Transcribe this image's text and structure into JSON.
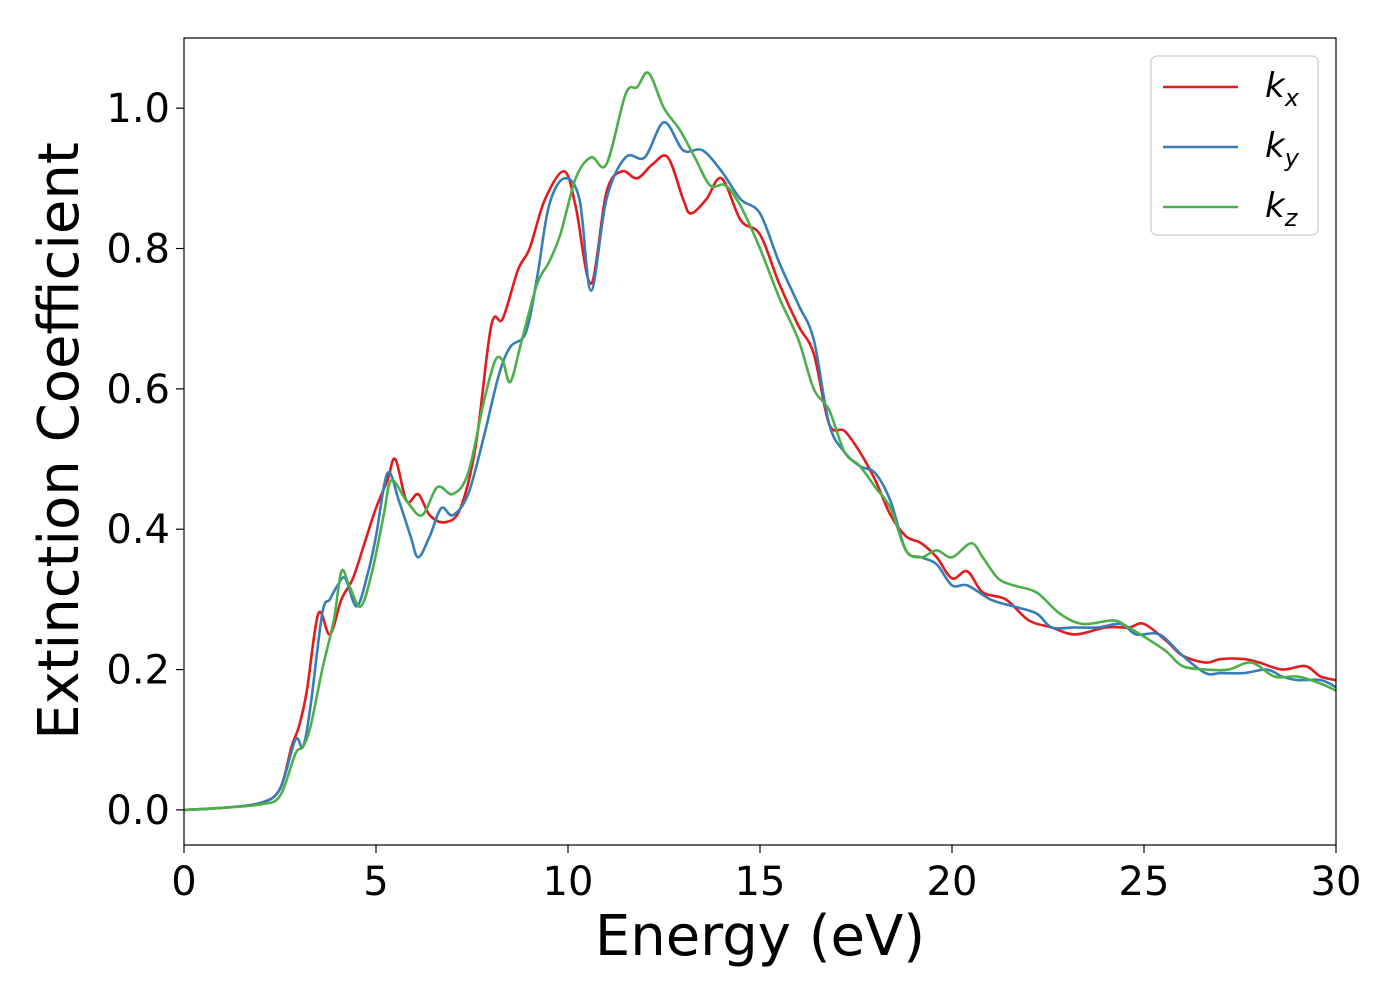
{
  "chart_data": {
    "type": "line",
    "title": "",
    "xlabel": "Energy (eV)",
    "ylabel": "Extinction Coefficient",
    "xlim": [
      0,
      30
    ],
    "ylim": [
      -0.05,
      1.1
    ],
    "xticks": [
      0,
      5,
      10,
      15,
      20,
      25,
      30
    ],
    "xtick_labels": [
      "0",
      "5",
      "10",
      "15",
      "20",
      "25",
      "30"
    ],
    "yticks": [
      0.0,
      0.2,
      0.4,
      0.6,
      0.8,
      1.0
    ],
    "ytick_labels": [
      "0.0",
      "0.2",
      "0.4",
      "0.6",
      "0.8",
      "1.0"
    ],
    "grid": false,
    "legend_position": "top-right",
    "series": [
      {
        "name": "kx",
        "legend_base": "k",
        "legend_sub": "x",
        "color": "#e41a1c",
        "points": [
          [
            0,
            0.0
          ],
          [
            1,
            0.003
          ],
          [
            2,
            0.01
          ],
          [
            2.5,
            0.03
          ],
          [
            2.8,
            0.09
          ],
          [
            3.0,
            0.12
          ],
          [
            3.2,
            0.17
          ],
          [
            3.5,
            0.28
          ],
          [
            3.8,
            0.25
          ],
          [
            4.1,
            0.3
          ],
          [
            4.4,
            0.33
          ],
          [
            4.7,
            0.38
          ],
          [
            5.0,
            0.43
          ],
          [
            5.3,
            0.47
          ],
          [
            5.5,
            0.5
          ],
          [
            5.8,
            0.44
          ],
          [
            6.1,
            0.45
          ],
          [
            6.4,
            0.42
          ],
          [
            6.8,
            0.41
          ],
          [
            7.2,
            0.43
          ],
          [
            7.6,
            0.52
          ],
          [
            8.0,
            0.69
          ],
          [
            8.3,
            0.7
          ],
          [
            8.7,
            0.77
          ],
          [
            9.0,
            0.8
          ],
          [
            9.4,
            0.87
          ],
          [
            9.9,
            0.91
          ],
          [
            10.2,
            0.86
          ],
          [
            10.6,
            0.75
          ],
          [
            11.0,
            0.88
          ],
          [
            11.4,
            0.91
          ],
          [
            11.8,
            0.9
          ],
          [
            12.2,
            0.92
          ],
          [
            12.6,
            0.93
          ],
          [
            13.0,
            0.87
          ],
          [
            13.2,
            0.85
          ],
          [
            13.6,
            0.87
          ],
          [
            14.0,
            0.9
          ],
          [
            14.5,
            0.84
          ],
          [
            15.0,
            0.82
          ],
          [
            15.5,
            0.75
          ],
          [
            16.0,
            0.69
          ],
          [
            16.4,
            0.65
          ],
          [
            16.8,
            0.55
          ],
          [
            17.2,
            0.54
          ],
          [
            17.6,
            0.51
          ],
          [
            18.0,
            0.47
          ],
          [
            18.4,
            0.42
          ],
          [
            18.8,
            0.39
          ],
          [
            19.2,
            0.38
          ],
          [
            19.6,
            0.36
          ],
          [
            20.0,
            0.33
          ],
          [
            20.4,
            0.34
          ],
          [
            20.8,
            0.31
          ],
          [
            21.4,
            0.3
          ],
          [
            22.0,
            0.27
          ],
          [
            22.6,
            0.26
          ],
          [
            23.2,
            0.25
          ],
          [
            24.0,
            0.26
          ],
          [
            24.6,
            0.26
          ],
          [
            25.0,
            0.265
          ],
          [
            25.6,
            0.24
          ],
          [
            26.0,
            0.22
          ],
          [
            26.6,
            0.21
          ],
          [
            27.0,
            0.215
          ],
          [
            27.6,
            0.215
          ],
          [
            28.0,
            0.21
          ],
          [
            28.6,
            0.2
          ],
          [
            29.2,
            0.205
          ],
          [
            29.6,
            0.19
          ],
          [
            30.0,
            0.185
          ]
        ]
      },
      {
        "name": "ky",
        "legend_base": "k",
        "legend_sub": "y",
        "color": "#377eb8",
        "points": [
          [
            0,
            0.0
          ],
          [
            1,
            0.003
          ],
          [
            2,
            0.01
          ],
          [
            2.5,
            0.03
          ],
          [
            2.9,
            0.1
          ],
          [
            3.1,
            0.09
          ],
          [
            3.3,
            0.15
          ],
          [
            3.6,
            0.28
          ],
          [
            3.8,
            0.3
          ],
          [
            4.0,
            0.32
          ],
          [
            4.2,
            0.33
          ],
          [
            4.5,
            0.29
          ],
          [
            4.8,
            0.34
          ],
          [
            5.0,
            0.39
          ],
          [
            5.3,
            0.48
          ],
          [
            5.6,
            0.44
          ],
          [
            5.9,
            0.39
          ],
          [
            6.1,
            0.36
          ],
          [
            6.4,
            0.39
          ],
          [
            6.7,
            0.43
          ],
          [
            7.0,
            0.42
          ],
          [
            7.4,
            0.45
          ],
          [
            7.8,
            0.53
          ],
          [
            8.2,
            0.62
          ],
          [
            8.5,
            0.66
          ],
          [
            8.9,
            0.68
          ],
          [
            9.2,
            0.76
          ],
          [
            9.5,
            0.86
          ],
          [
            9.9,
            0.9
          ],
          [
            10.3,
            0.87
          ],
          [
            10.6,
            0.74
          ],
          [
            11.0,
            0.87
          ],
          [
            11.5,
            0.93
          ],
          [
            12.0,
            0.93
          ],
          [
            12.5,
            0.98
          ],
          [
            13.0,
            0.94
          ],
          [
            13.5,
            0.94
          ],
          [
            14.0,
            0.91
          ],
          [
            14.5,
            0.87
          ],
          [
            15.0,
            0.85
          ],
          [
            15.5,
            0.78
          ],
          [
            16.0,
            0.72
          ],
          [
            16.4,
            0.67
          ],
          [
            16.8,
            0.55
          ],
          [
            17.2,
            0.51
          ],
          [
            17.6,
            0.49
          ],
          [
            18.0,
            0.48
          ],
          [
            18.4,
            0.44
          ],
          [
            18.8,
            0.37
          ],
          [
            19.2,
            0.36
          ],
          [
            19.6,
            0.35
          ],
          [
            20.0,
            0.32
          ],
          [
            20.4,
            0.32
          ],
          [
            21.0,
            0.3
          ],
          [
            21.6,
            0.29
          ],
          [
            22.2,
            0.28
          ],
          [
            22.6,
            0.26
          ],
          [
            23.2,
            0.26
          ],
          [
            23.8,
            0.26
          ],
          [
            24.4,
            0.265
          ],
          [
            24.8,
            0.25
          ],
          [
            25.4,
            0.25
          ],
          [
            26.0,
            0.22
          ],
          [
            26.6,
            0.195
          ],
          [
            27.0,
            0.195
          ],
          [
            27.6,
            0.195
          ],
          [
            28.2,
            0.2
          ],
          [
            28.6,
            0.19
          ],
          [
            29.0,
            0.185
          ],
          [
            29.6,
            0.185
          ],
          [
            30.0,
            0.175
          ]
        ]
      },
      {
        "name": "kz",
        "legend_base": "k",
        "legend_sub": "z",
        "color": "#4daf4a",
        "points": [
          [
            0,
            0.0
          ],
          [
            1,
            0.003
          ],
          [
            2,
            0.008
          ],
          [
            2.5,
            0.02
          ],
          [
            2.9,
            0.08
          ],
          [
            3.1,
            0.09
          ],
          [
            3.3,
            0.12
          ],
          [
            3.6,
            0.2
          ],
          [
            3.9,
            0.27
          ],
          [
            4.1,
            0.34
          ],
          [
            4.3,
            0.32
          ],
          [
            4.6,
            0.29
          ],
          [
            4.9,
            0.34
          ],
          [
            5.2,
            0.42
          ],
          [
            5.4,
            0.47
          ],
          [
            5.8,
            0.44
          ],
          [
            6.2,
            0.42
          ],
          [
            6.6,
            0.46
          ],
          [
            7.0,
            0.45
          ],
          [
            7.4,
            0.48
          ],
          [
            7.8,
            0.58
          ],
          [
            8.1,
            0.64
          ],
          [
            8.3,
            0.64
          ],
          [
            8.5,
            0.61
          ],
          [
            8.8,
            0.67
          ],
          [
            9.2,
            0.75
          ],
          [
            9.5,
            0.78
          ],
          [
            9.8,
            0.82
          ],
          [
            10.2,
            0.9
          ],
          [
            10.6,
            0.93
          ],
          [
            11.0,
            0.92
          ],
          [
            11.5,
            1.02
          ],
          [
            11.8,
            1.03
          ],
          [
            12.1,
            1.05
          ],
          [
            12.5,
            1.0
          ],
          [
            12.9,
            0.97
          ],
          [
            13.3,
            0.93
          ],
          [
            13.7,
            0.89
          ],
          [
            14.1,
            0.89
          ],
          [
            14.5,
            0.86
          ],
          [
            15.0,
            0.8
          ],
          [
            15.5,
            0.73
          ],
          [
            16.0,
            0.67
          ],
          [
            16.4,
            0.6
          ],
          [
            16.8,
            0.57
          ],
          [
            17.2,
            0.51
          ],
          [
            17.6,
            0.49
          ],
          [
            18.0,
            0.46
          ],
          [
            18.4,
            0.43
          ],
          [
            18.8,
            0.37
          ],
          [
            19.2,
            0.36
          ],
          [
            19.6,
            0.37
          ],
          [
            20.0,
            0.36
          ],
          [
            20.5,
            0.38
          ],
          [
            20.8,
            0.36
          ],
          [
            21.2,
            0.33
          ],
          [
            21.6,
            0.32
          ],
          [
            22.2,
            0.31
          ],
          [
            22.8,
            0.28
          ],
          [
            23.4,
            0.265
          ],
          [
            24.2,
            0.27
          ],
          [
            24.6,
            0.26
          ],
          [
            25.2,
            0.24
          ],
          [
            25.6,
            0.225
          ],
          [
            26.0,
            0.205
          ],
          [
            26.6,
            0.2
          ],
          [
            27.2,
            0.2
          ],
          [
            27.8,
            0.21
          ],
          [
            28.4,
            0.19
          ],
          [
            29.0,
            0.19
          ],
          [
            29.6,
            0.18
          ],
          [
            30.0,
            0.17
          ]
        ]
      }
    ]
  }
}
